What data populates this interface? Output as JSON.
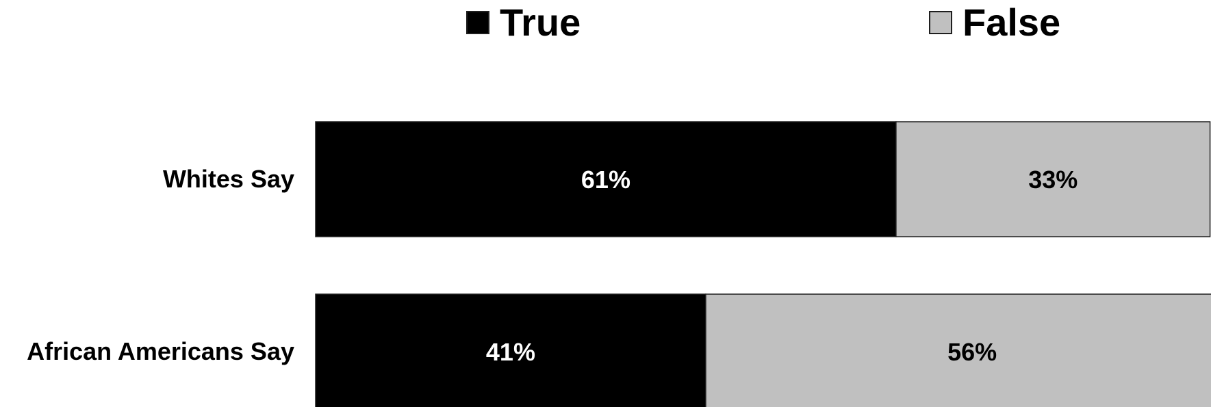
{
  "chart_data": {
    "type": "bar",
    "orientation": "horizontal",
    "stacked": true,
    "categories": [
      "Whites Say",
      "African Americans Say"
    ],
    "series": [
      {
        "name": "True",
        "values": [
          61,
          41
        ],
        "color": "#000000",
        "label_color": "#ffffff"
      },
      {
        "name": "False",
        "values": [
          33,
          56
        ],
        "color": "#c0c0c0",
        "label_color": "#000000"
      }
    ],
    "data_labels": [
      [
        "61%",
        "41%"
      ],
      [
        "33%",
        "56%"
      ]
    ],
    "xlim": [
      0,
      100
    ],
    "legend_position": "top",
    "grid": false,
    "title": "",
    "xlabel": "",
    "ylabel": ""
  }
}
